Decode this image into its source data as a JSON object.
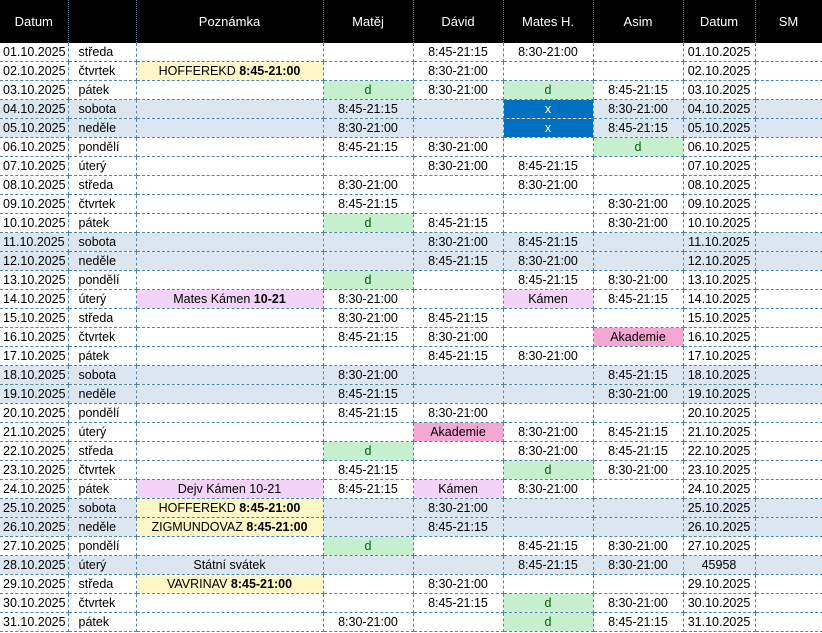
{
  "headers": [
    "Datum",
    "",
    "Poznámka",
    "Matěj",
    "Dávid",
    "Mates H.",
    "Asim",
    "Datum",
    "SM"
  ],
  "rows": [
    {
      "date": "01.10.2025",
      "day": "středa",
      "we": false,
      "note": "",
      "note_b": "",
      "note_c": "",
      "matej": "",
      "matej_c": "",
      "david": "8:45-21:15",
      "david_c": "",
      "mates": "8:30-21:00",
      "mates_c": "",
      "asim": "",
      "asim_c": "",
      "date2": "01.10.2025"
    },
    {
      "date": "02.10.2025",
      "day": "čtvrtek",
      "we": false,
      "note": "HOFFEREKD ",
      "note_b": "8:45-21:00",
      "note_c": "yellow",
      "matej": "",
      "matej_c": "",
      "david": "8:30-21:00",
      "david_c": "",
      "mates": "",
      "mates_c": "",
      "asim": "",
      "asim_c": "",
      "date2": "02.10.2025"
    },
    {
      "date": "03.10.2025",
      "day": "pátek",
      "we": false,
      "note": "",
      "note_b": "",
      "note_c": "",
      "matej": "d",
      "matej_c": "green",
      "david": "8:30-21:00",
      "david_c": "",
      "mates": "d",
      "mates_c": "green",
      "asim": "8:45-21:15",
      "asim_c": "",
      "date2": "03.10.2025"
    },
    {
      "date": "04.10.2025",
      "day": "sobota",
      "we": true,
      "note": "",
      "note_b": "",
      "note_c": "",
      "matej": "8:45-21:15",
      "matej_c": "",
      "david": "",
      "david_c": "",
      "mates": "x",
      "mates_c": "blue",
      "asim": "8:30-21:00",
      "asim_c": "",
      "date2": "04.10.2025"
    },
    {
      "date": "05.10.2025",
      "day": "neděle",
      "we": true,
      "note": "",
      "note_b": "",
      "note_c": "",
      "matej": "8:30-21:00",
      "matej_c": "",
      "david": "",
      "david_c": "",
      "mates": "x",
      "mates_c": "blue",
      "asim": "8:45-21:15",
      "asim_c": "",
      "date2": "05.10.2025"
    },
    {
      "date": "06.10.2025",
      "day": "pondělí",
      "we": false,
      "note": "",
      "note_b": "",
      "note_c": "",
      "matej": "8:45-21:15",
      "matej_c": "",
      "david": "8:30-21:00",
      "david_c": "",
      "mates": "",
      "mates_c": "",
      "asim": "d",
      "asim_c": "green",
      "date2": "06.10.2025"
    },
    {
      "date": "07.10.2025",
      "day": "úterý",
      "we": false,
      "note": "",
      "note_b": "",
      "note_c": "",
      "matej": "",
      "matej_c": "",
      "david": "8:30-21:00",
      "david_c": "",
      "mates": "8:45-21:15",
      "mates_c": "",
      "asim": "",
      "asim_c": "",
      "date2": "07.10.2025"
    },
    {
      "date": "08.10.2025",
      "day": "středa",
      "we": false,
      "note": "",
      "note_b": "",
      "note_c": "",
      "matej": "8:30-21:00",
      "matej_c": "",
      "david": "",
      "david_c": "",
      "mates": "8:30-21:00",
      "mates_c": "",
      "asim": "",
      "asim_c": "",
      "date2": "08.10.2025"
    },
    {
      "date": "09.10.2025",
      "day": "čtvrtek",
      "we": false,
      "note": "",
      "note_b": "",
      "note_c": "",
      "matej": "8:45-21:15",
      "matej_c": "",
      "david": "",
      "david_c": "",
      "mates": "",
      "mates_c": "",
      "asim": "8:30-21:00",
      "asim_c": "",
      "date2": "09.10.2025"
    },
    {
      "date": "10.10.2025",
      "day": "pátek",
      "we": false,
      "note": "",
      "note_b": "",
      "note_c": "",
      "matej": "d",
      "matej_c": "green",
      "david": "8:45-21:15",
      "david_c": "",
      "mates": "",
      "mates_c": "",
      "asim": "8:30-21:00",
      "asim_c": "",
      "date2": "10.10.2025"
    },
    {
      "date": "11.10.2025",
      "day": "sobota",
      "we": true,
      "note": "",
      "note_b": "",
      "note_c": "",
      "matej": "",
      "matej_c": "",
      "david": "8:30-21:00",
      "david_c": "",
      "mates": "8:45-21:15",
      "mates_c": "",
      "asim": "",
      "asim_c": "",
      "date2": "11.10.2025"
    },
    {
      "date": "12.10.2025",
      "day": "neděle",
      "we": true,
      "note": "",
      "note_b": "",
      "note_c": "",
      "matej": "",
      "matej_c": "",
      "david": "8:45-21:15",
      "david_c": "",
      "mates": "8:30-21:00",
      "mates_c": "",
      "asim": "",
      "asim_c": "",
      "date2": "12.10.2025"
    },
    {
      "date": "13.10.2025",
      "day": "pondělí",
      "we": false,
      "note": "",
      "note_b": "",
      "note_c": "",
      "matej": "d",
      "matej_c": "green",
      "david": "",
      "david_c": "",
      "mates": "8:45-21:15",
      "mates_c": "",
      "asim": "8:30-21:00",
      "asim_c": "",
      "date2": "13.10.2025"
    },
    {
      "date": "14.10.2025",
      "day": "úterý",
      "we": false,
      "note": "Mates Kámen ",
      "note_b": "10-21",
      "note_c": "lav",
      "matej": "8:30-21:00",
      "matej_c": "",
      "david": "",
      "david_c": "",
      "mates": "Kámen",
      "mates_c": "lav",
      "asim": "8:45-21:15",
      "asim_c": "",
      "date2": "14.10.2025"
    },
    {
      "date": "15.10.2025",
      "day": "středa",
      "we": false,
      "note": "",
      "note_b": "",
      "note_c": "",
      "matej": "8:30-21:00",
      "matej_c": "",
      "david": "8:45-21:15",
      "david_c": "",
      "mates": "",
      "mates_c": "",
      "asim": "",
      "asim_c": "",
      "date2": "15.10.2025"
    },
    {
      "date": "16.10.2025",
      "day": "čtvrtek",
      "we": false,
      "note": "",
      "note_b": "",
      "note_c": "",
      "matej": "8:45-21:15",
      "matej_c": "",
      "david": "8:30-21:00",
      "david_c": "",
      "mates": "",
      "mates_c": "",
      "asim": "Akademie",
      "asim_c": "pink",
      "date2": "16.10.2025"
    },
    {
      "date": "17.10.2025",
      "day": "pátek",
      "we": false,
      "note": "",
      "note_b": "",
      "note_c": "",
      "matej": "",
      "matej_c": "",
      "david": "8:45-21:15",
      "david_c": "",
      "mates": "8:30-21:00",
      "mates_c": "",
      "asim": "",
      "asim_c": "",
      "date2": "17.10.2025"
    },
    {
      "date": "18.10.2025",
      "day": "sobota",
      "we": true,
      "note": "",
      "note_b": "",
      "note_c": "",
      "matej": "8:30-21:00",
      "matej_c": "",
      "david": "",
      "david_c": "",
      "mates": "",
      "mates_c": "",
      "asim": "8:45-21:15",
      "asim_c": "",
      "date2": "18.10.2025"
    },
    {
      "date": "19.10.2025",
      "day": "neděle",
      "we": true,
      "note": "",
      "note_b": "",
      "note_c": "",
      "matej": "8:45-21:15",
      "matej_c": "",
      "david": "",
      "david_c": "",
      "mates": "",
      "mates_c": "",
      "asim": "8:30-21:00",
      "asim_c": "",
      "date2": "19.10.2025"
    },
    {
      "date": "20.10.2025",
      "day": "pondělí",
      "we": false,
      "note": "",
      "note_b": "",
      "note_c": "",
      "matej": "8:45-21:15",
      "matej_c": "",
      "david": "8:30-21:00",
      "david_c": "",
      "mates": "",
      "mates_c": "",
      "asim": "",
      "asim_c": "",
      "date2": "20.10.2025"
    },
    {
      "date": "21.10.2025",
      "day": "úterý",
      "we": false,
      "note": "",
      "note_b": "",
      "note_c": "",
      "matej": "",
      "matej_c": "",
      "david": "Akademie",
      "david_c": "pink",
      "mates": "8:30-21:00",
      "mates_c": "",
      "asim": "8:45-21:15",
      "asim_c": "",
      "date2": "21.10.2025"
    },
    {
      "date": "22.10.2025",
      "day": "středa",
      "we": false,
      "note": "",
      "note_b": "",
      "note_c": "",
      "matej": "d",
      "matej_c": "green",
      "david": "",
      "david_c": "",
      "mates": "8:30-21:00",
      "mates_c": "",
      "asim": "8:45-21:15",
      "asim_c": "",
      "date2": "22.10.2025"
    },
    {
      "date": "23.10.2025",
      "day": "čtvrtek",
      "we": false,
      "note": "",
      "note_b": "",
      "note_c": "",
      "matej": "8:45-21:15",
      "matej_c": "",
      "david": "",
      "david_c": "",
      "mates": "d",
      "mates_c": "green",
      "asim": "8:30-21:00",
      "asim_c": "",
      "date2": "23.10.2025"
    },
    {
      "date": "24.10.2025",
      "day": "pátek",
      "we": false,
      "note": "Dejv Kámen 10-21",
      "note_b": "",
      "note_c": "lav",
      "matej": "8:45-21:15",
      "matej_c": "",
      "david": "Kámen",
      "david_c": "lav",
      "mates": "8:30-21:00",
      "mates_c": "",
      "asim": "",
      "asim_c": "",
      "date2": "24.10.2025"
    },
    {
      "date": "25.10.2025",
      "day": "sobota",
      "we": true,
      "note": "HOFFEREKD ",
      "note_b": "8:45-21:00",
      "note_c": "yellow",
      "matej": "",
      "matej_c": "",
      "david": "8:30-21:00",
      "david_c": "",
      "mates": "",
      "mates_c": "",
      "asim": "",
      "asim_c": "",
      "date2": "25.10.2025"
    },
    {
      "date": "26.10.2025",
      "day": "neděle",
      "we": true,
      "note": "ZIGMUNDOVAZ ",
      "note_b": "8:45-21:00",
      "note_c": "yellow",
      "matej": "",
      "matej_c": "",
      "david": "8:45-21:15",
      "david_c": "",
      "mates": "",
      "mates_c": "",
      "asim": "",
      "asim_c": "",
      "date2": "26.10.2025"
    },
    {
      "date": "27.10.2025",
      "day": "pondělí",
      "we": false,
      "note": "",
      "note_b": "",
      "note_c": "",
      "matej": "d",
      "matej_c": "green",
      "david": "",
      "david_c": "",
      "mates": "8:45-21:15",
      "mates_c": "",
      "asim": "8:30-21:00",
      "asim_c": "",
      "date2": "27.10.2025"
    },
    {
      "date": "28.10.2025",
      "day": "úterý",
      "we": true,
      "note": "Státní svátek",
      "note_b": "",
      "note_c": "",
      "matej": "",
      "matej_c": "",
      "david": "",
      "david_c": "",
      "mates": "8:45-21:15",
      "mates_c": "",
      "asim": "8:30-21:00",
      "asim_c": "",
      "date2": "45958"
    },
    {
      "date": "29.10.2025",
      "day": "středa",
      "we": false,
      "note": "VAVRINAV ",
      "note_b": "8:45-21:00",
      "note_c": "yellow",
      "matej": "",
      "matej_c": "",
      "david": "8:30-21:00",
      "david_c": "",
      "mates": "",
      "mates_c": "",
      "asim": "",
      "asim_c": "",
      "date2": "29.10.2025"
    },
    {
      "date": "30.10.2025",
      "day": "čtvrtek",
      "we": false,
      "note": "",
      "note_b": "",
      "note_c": "",
      "matej": "",
      "matej_c": "",
      "david": "8:45-21:15",
      "david_c": "",
      "mates": "d",
      "mates_c": "green",
      "asim": "8:30-21:00",
      "asim_c": "",
      "date2": "30.10.2025"
    },
    {
      "date": "31.10.2025",
      "day": "pátek",
      "we": false,
      "note": "",
      "note_b": "",
      "note_c": "",
      "matej": "8:30-21:00",
      "matej_c": "",
      "david": "",
      "david_c": "",
      "mates": "d",
      "mates_c": "green",
      "asim": "8:45-21:15",
      "asim_c": "",
      "date2": "31.10.2025"
    }
  ]
}
